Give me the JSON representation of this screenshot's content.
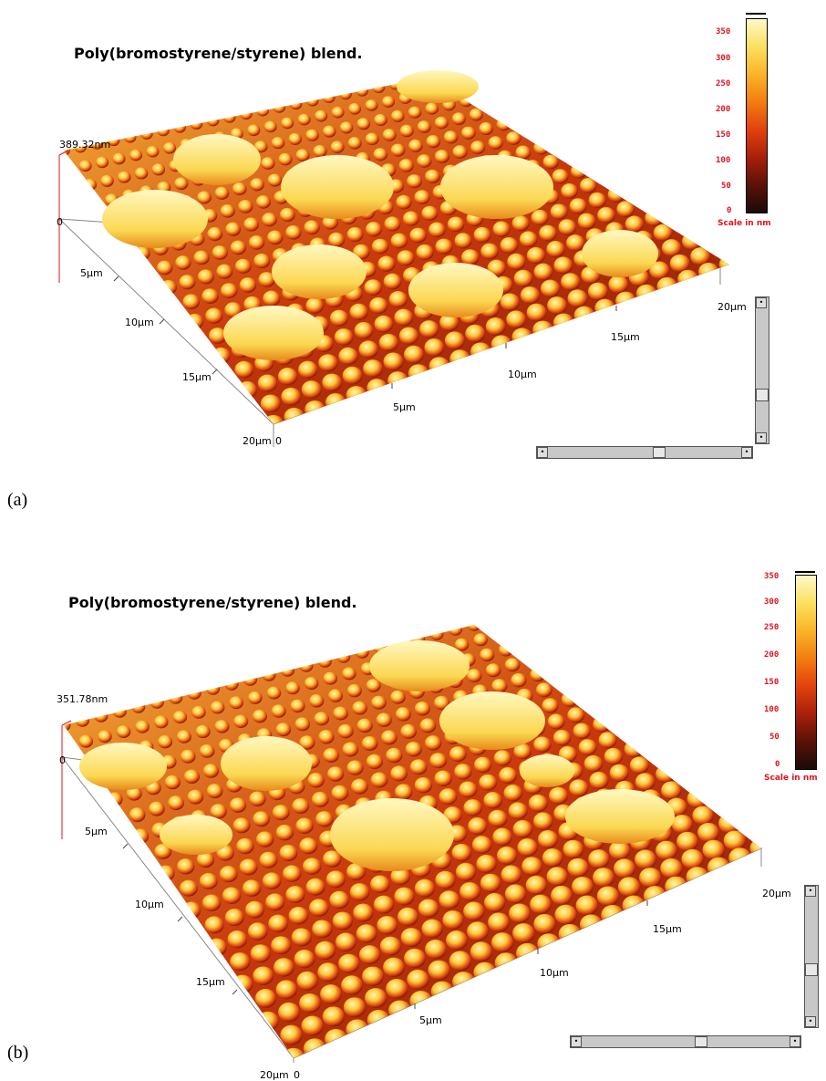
{
  "panels": [
    {
      "id": "a",
      "label": "(a)",
      "title": "Poly(bromostyrene/styrene) blend.",
      "z_max_label": "389.32nm",
      "z_zero_label": "0",
      "y_axis_ticks": [
        "5µm",
        "10µm",
        "15µm",
        "20µm"
      ],
      "x_axis_ticks": [
        "0",
        "5µm",
        "10µm",
        "15µm",
        "20µm"
      ],
      "scale_ticks": [
        "350",
        "300",
        "250",
        "200",
        "150",
        "100",
        "50",
        "0"
      ],
      "scale_caption": "Scale in nm"
    },
    {
      "id": "b",
      "label": "(b)",
      "title": "Poly(bromostyrene/styrene) blend.",
      "z_max_label": "351.78nm",
      "z_zero_label": "0",
      "y_axis_ticks": [
        "5µm",
        "10µm",
        "15µm",
        "20µm"
      ],
      "x_axis_ticks": [
        "0",
        "5µm",
        "10µm",
        "15µm",
        "20µm"
      ],
      "scale_ticks": [
        "350",
        "300",
        "250",
        "200",
        "150",
        "100",
        "50",
        "0"
      ],
      "scale_caption": "Scale in nm"
    }
  ],
  "colors": {
    "colormap": [
      "#1a0b08",
      "#5a1208",
      "#a8200a",
      "#e2420c",
      "#f27d12",
      "#f9b428",
      "#fbe060",
      "#fff8c8"
    ],
    "axis_red": "#e0141e"
  }
}
